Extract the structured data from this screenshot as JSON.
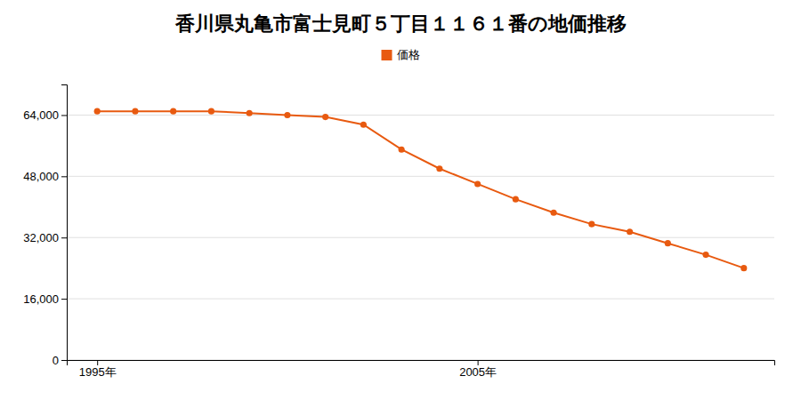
{
  "chart_data": {
    "type": "line",
    "title": "香川県丸亀市富士見町５丁目１１６１番の地価推移",
    "x": [
      1995,
      1996,
      1997,
      1998,
      1999,
      2000,
      2001,
      2002,
      2003,
      2004,
      2005,
      2006,
      2007,
      2008,
      2009,
      2010,
      2011,
      2012
    ],
    "series": [
      {
        "name": "価格",
        "color": "#e85a10",
        "marker": "circle",
        "line_style": "solid",
        "values": [
          65000,
          65000,
          65000,
          65000,
          64500,
          64000,
          63500,
          61500,
          55000,
          50000,
          46000,
          42000,
          38500,
          35500,
          33500,
          30500,
          27500,
          24000
        ]
      }
    ],
    "xlim": [
      1994.2,
      2012.8
    ],
    "xticks": [
      {
        "value": 1995,
        "label": "1995年"
      },
      {
        "value": 2005,
        "label": "2005年"
      }
    ],
    "ylim": [
      0,
      72000
    ],
    "yticks": [
      0,
      {
        "value": 16000,
        "label": "16,000"
      },
      {
        "value": 32000,
        "label": "32,000"
      },
      {
        "value": 48000,
        "label": "48,000"
      },
      {
        "value": 64000,
        "label": "64,000"
      }
    ],
    "grid": "y",
    "legend": "top"
  }
}
